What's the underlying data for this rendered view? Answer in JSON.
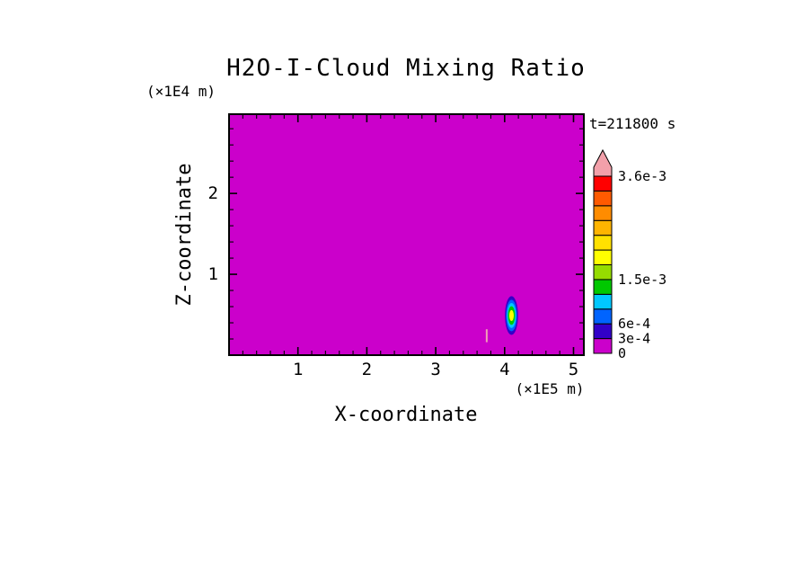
{
  "chart_data": {
    "type": "heatmap",
    "variant": "filled-contour-plot",
    "title": "H2O-I-Cloud Mixing Ratio",
    "xlabel": "X-coordinate",
    "ylabel": "Z-coordinate",
    "x_unit_label": "(×1E5 m)",
    "y_unit_label": "(×1E4 m)",
    "time_label": "t=211800 s",
    "x_range": [
      0,
      5.15
    ],
    "y_range": [
      0,
      2.98
    ],
    "x_major_ticks": [
      1,
      2,
      3,
      4,
      5
    ],
    "y_major_ticks": [
      1,
      2
    ],
    "x_minor_step": 0.2,
    "y_minor_step": 0.2,
    "grid": false,
    "background_value": 0,
    "background_color": "#CB00CB",
    "colorbar": {
      "position": "right",
      "levels": [
        0,
        0.0003,
        0.0006,
        0.0009,
        0.0012,
        0.0015,
        0.0018,
        0.0021,
        0.0024,
        0.0027,
        0.003,
        0.0033,
        0.0036
      ],
      "segment_colors": [
        "#CB00CB",
        "#3200C8",
        "#0064FF",
        "#00C8FF",
        "#00C800",
        "#96DC00",
        "#FFFF00",
        "#FFE100",
        "#FFB400",
        "#FF8C00",
        "#FF5A00",
        "#FF0000"
      ],
      "overflow_color": "#F2A0AA",
      "labels": [
        {
          "text": "3.6e-3",
          "level": 0.0036
        },
        {
          "text": "1.5e-3",
          "level": 0.0015
        },
        {
          "text": "6e-4",
          "level": 0.0006
        },
        {
          "text": "3e-4",
          "level": 0.0003
        },
        {
          "text": "0",
          "level": 0
        }
      ]
    },
    "features": [
      {
        "type": "cell",
        "name": "convective-cloud-cell",
        "x": 4.1,
        "z": 0.49,
        "rings": [
          {
            "level": 0.0003,
            "color": "#3200C8",
            "rx": 0.095,
            "rz": 0.24
          },
          {
            "level": 0.0006,
            "color": "#0064FF",
            "rx": 0.08,
            "rz": 0.195
          },
          {
            "level": 0.0009,
            "color": "#00C8FF",
            "rx": 0.066,
            "rz": 0.155
          },
          {
            "level": 0.0012,
            "color": "#00C800",
            "rx": 0.052,
            "rz": 0.115
          },
          {
            "level": 0.0018,
            "color": "#FFFF00",
            "rx": 0.033,
            "rz": 0.068
          }
        ]
      },
      {
        "type": "streak",
        "name": "thin-cloud-streak",
        "x": 3.74,
        "z_bottom": 0.16,
        "z_top": 0.32,
        "color": "#F0A0B4"
      }
    ]
  }
}
